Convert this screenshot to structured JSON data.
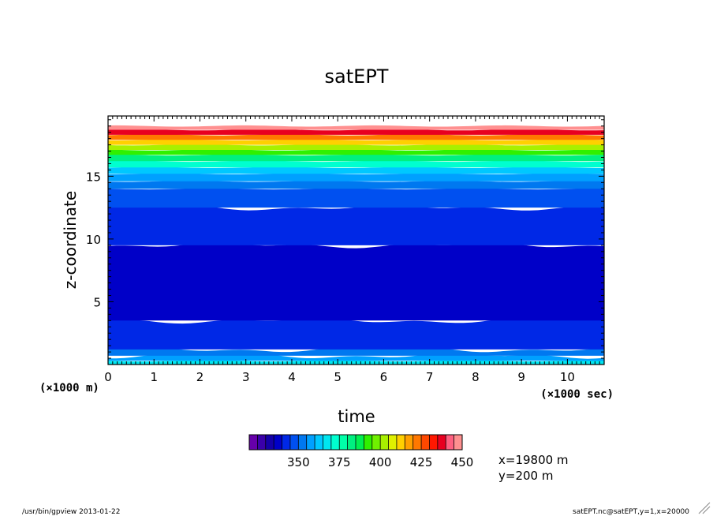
{
  "chart_data": {
    "type": "heatmap",
    "title": "satEPT",
    "xlabel": "time",
    "ylabel": "z-coordinate",
    "x_unit": "(×1000 sec)",
    "y_unit": "(×1000 m)",
    "x_range": [
      0,
      10.8
    ],
    "y_range": [
      0,
      19.8
    ],
    "x_ticks": [
      0,
      1,
      2,
      3,
      4,
      5,
      6,
      7,
      8,
      9,
      10
    ],
    "y_ticks": [
      5,
      10,
      15
    ],
    "contour_levels": [
      325,
      330,
      335,
      340,
      345,
      350,
      355,
      360,
      365,
      370,
      375,
      380,
      385,
      390,
      395,
      400,
      405,
      410,
      415,
      420,
      425,
      430,
      435,
      440,
      445,
      450
    ],
    "bands": [
      {
        "y": [
          0.0,
          0.3
        ],
        "value": 370
      },
      {
        "y": [
          0.3,
          0.7
        ],
        "value": 360
      },
      {
        "y": [
          0.7,
          1.2
        ],
        "value": 352
      },
      {
        "y": [
          1.2,
          3.5
        ],
        "value": 345
      },
      {
        "y": [
          3.5,
          9.5
        ],
        "value": 340
      },
      {
        "y": [
          9.5,
          12.5
        ],
        "value": 345
      },
      {
        "y": [
          12.5,
          14.0
        ],
        "value": 350
      },
      {
        "y": [
          14.0,
          14.6
        ],
        "value": 355
      },
      {
        "y": [
          14.6,
          15.2
        ],
        "value": 360
      },
      {
        "y": [
          15.2,
          15.7
        ],
        "value": 365
      },
      {
        "y": [
          15.7,
          16.2
        ],
        "value": 375
      },
      {
        "y": [
          16.2,
          16.7
        ],
        "value": 385
      },
      {
        "y": [
          16.7,
          17.1
        ],
        "value": 395
      },
      {
        "y": [
          17.1,
          17.5
        ],
        "value": 405
      },
      {
        "y": [
          17.5,
          17.9
        ],
        "value": 415
      },
      {
        "y": [
          17.9,
          18.3
        ],
        "value": 425
      },
      {
        "y": [
          18.3,
          18.7
        ],
        "value": 440
      },
      {
        "y": [
          18.7,
          19.0
        ],
        "value": 450
      }
    ],
    "colorbar": {
      "colors": [
        "#6600aa",
        "#3a00aa",
        "#1400a8",
        "#0000c8",
        "#0028e6",
        "#0050f0",
        "#0078f0",
        "#00a0ff",
        "#00c8ff",
        "#00e6f0",
        "#00ffd0",
        "#00ffa8",
        "#00f080",
        "#00f050",
        "#30f000",
        "#70f000",
        "#a8f000",
        "#e0f000",
        "#ffd000",
        "#ffa000",
        "#ff7800",
        "#ff4800",
        "#ff1800",
        "#e80020",
        "#ff6080",
        "#ff9090"
      ],
      "tick_labels": [
        "350",
        "375",
        "400",
        "425",
        "450"
      ]
    },
    "grid": false
  },
  "info": {
    "x_pos": "x=19800  m",
    "y_pos": "y=200  m"
  },
  "footer": {
    "left": "/usr/bin/gpview  2013-01-22",
    "right": "satEPT.nc@satEPT,y=1,x=20000"
  }
}
